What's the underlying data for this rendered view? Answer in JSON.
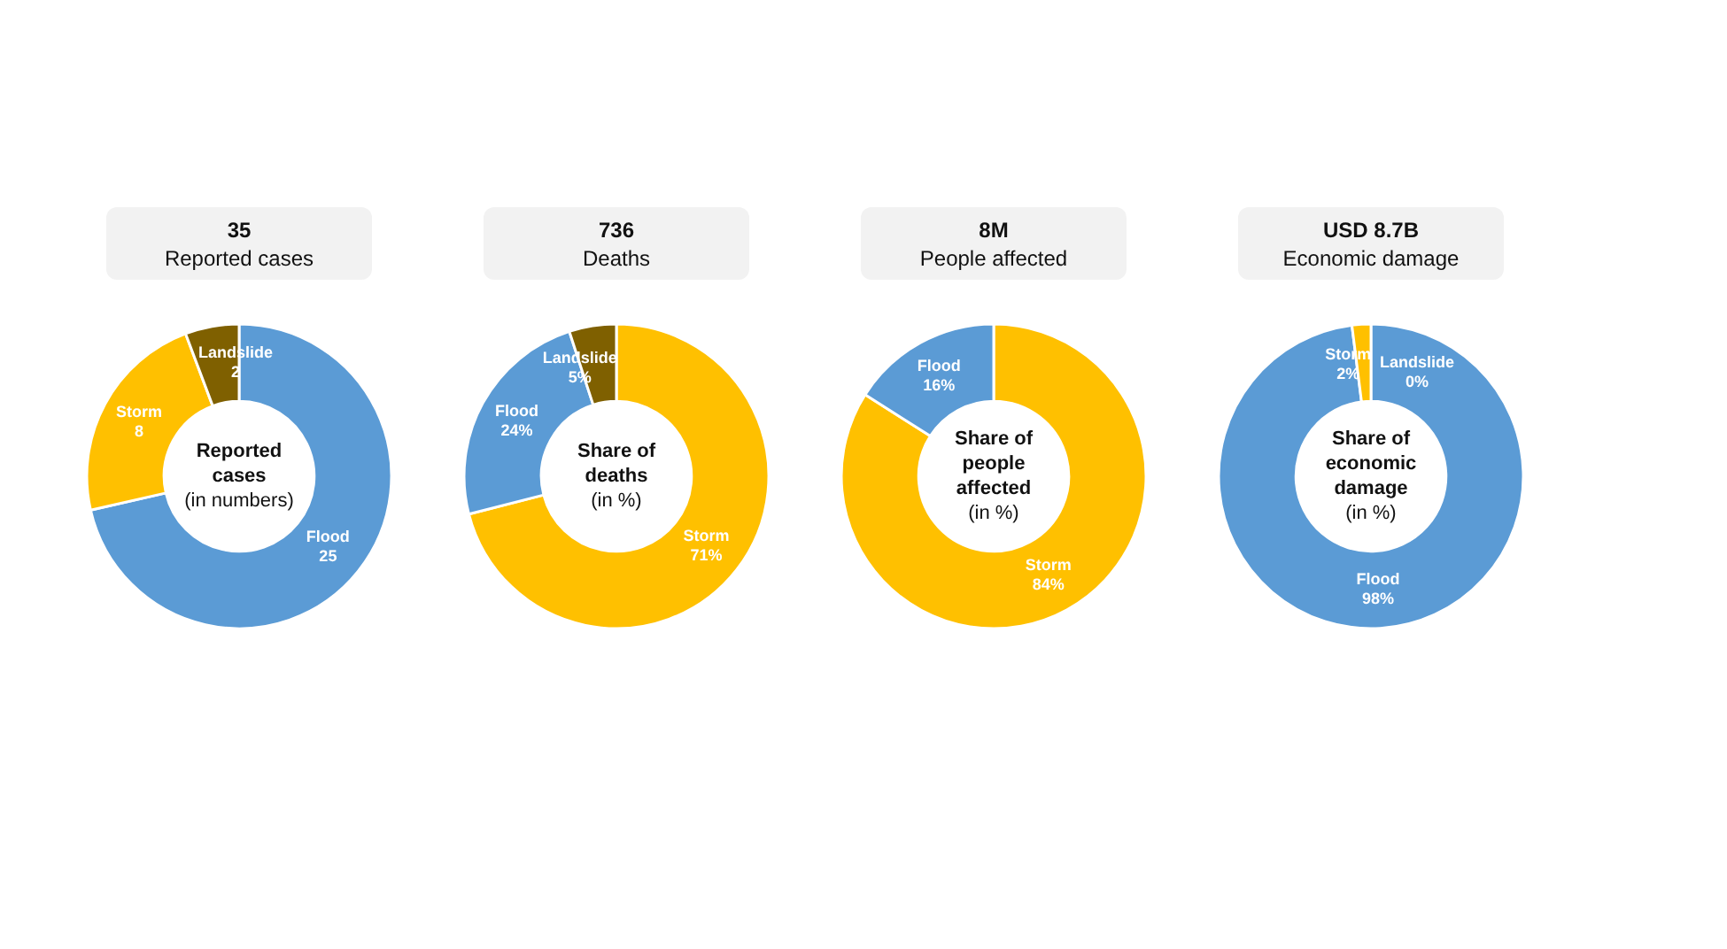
{
  "chart_data": [
    {
      "type": "donut",
      "title": "35",
      "subtitle": "Reported cases",
      "categories": [
        "Flood",
        "Storm",
        "Landslide"
      ],
      "values": [
        25,
        8,
        2
      ],
      "colors": [
        "#5b9bd5",
        "#ffc000",
        "#7f6000"
      ],
      "data_labels": true,
      "annotations": [
        "Reported cases",
        "(in numbers)"
      ]
    },
    {
      "type": "donut",
      "title": "736",
      "subtitle": "Deaths",
      "categories": [
        "Storm",
        "Flood",
        "Landslide"
      ],
      "values": [
        71,
        24,
        5
      ],
      "colors": [
        "#ffc000",
        "#5b9bd5",
        "#7f6000"
      ],
      "value_labels": [
        "71%",
        "24%",
        "5%"
      ],
      "annotations": [
        "Share of deaths",
        "(in %)"
      ]
    },
    {
      "type": "donut",
      "title": "8M",
      "subtitle": "People affected",
      "categories": [
        "Storm",
        "Flood"
      ],
      "values": [
        84,
        16
      ],
      "colors": [
        "#ffc000",
        "#5b9bd5"
      ],
      "value_labels": [
        "84%",
        "16%"
      ],
      "annotations": [
        "Share of people affected",
        "(in %)"
      ]
    },
    {
      "type": "donut",
      "title": "USD 8.7B",
      "subtitle": "Economic damage",
      "categories": [
        "Landslide",
        "Flood",
        "Storm"
      ],
      "values": [
        0,
        98,
        2
      ],
      "colors": [
        "#7f6000",
        "#5b9bd5",
        "#ffc000"
      ],
      "value_labels": [
        "0%",
        "98%",
        "2%"
      ],
      "annotations": [
        "Share of economic damage",
        "(in %)"
      ]
    }
  ]
}
